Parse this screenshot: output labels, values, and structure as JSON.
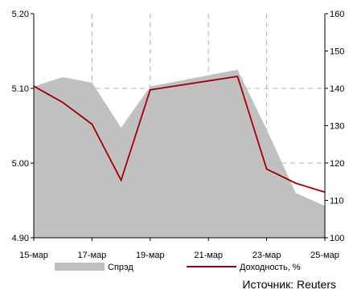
{
  "chart_data": {
    "type": "area+line",
    "x_ticks": [
      "15-мар",
      "17-мар",
      "19-мар",
      "21-мар",
      "23-мар",
      "25-мар"
    ],
    "x_tick_index": [
      0,
      2,
      4,
      6,
      8,
      10
    ],
    "left_axis": {
      "ylim": [
        4.9,
        5.2
      ],
      "ticks": [
        "4.90",
        "5.00",
        "5.10",
        "5.20"
      ],
      "tick_values": [
        4.9,
        5.0,
        5.1,
        5.2
      ]
    },
    "right_axis": {
      "ylim": [
        100,
        160
      ],
      "ticks": [
        "100",
        "110",
        "120",
        "130",
        "140",
        "150",
        "160"
      ],
      "tick_values": [
        100,
        110,
        120,
        130,
        140,
        150,
        160
      ]
    },
    "grid": true,
    "legend_placement": "bottom",
    "series": [
      {
        "name": "Спрэд",
        "kind": "area",
        "axis": "right",
        "color": "#c0c0c0",
        "x": [
          0,
          1,
          2,
          3,
          4,
          5,
          6,
          7,
          8,
          9,
          10
        ],
        "values": [
          140.5,
          143,
          141.5,
          129.5,
          140.5,
          142,
          143.5,
          145,
          129,
          112,
          108.5
        ]
      },
      {
        "name": "Доходность, %",
        "kind": "line",
        "axis": "left",
        "color": "#a00000",
        "x": [
          0,
          1,
          2,
          3,
          4,
          5,
          6,
          7,
          8,
          9,
          10
        ],
        "values": [
          5.103,
          5.081,
          5.052,
          4.977,
          5.098,
          5.104,
          5.11,
          5.116,
          4.992,
          4.973,
          4.961
        ]
      }
    ]
  },
  "source": "Источник: Reuters"
}
